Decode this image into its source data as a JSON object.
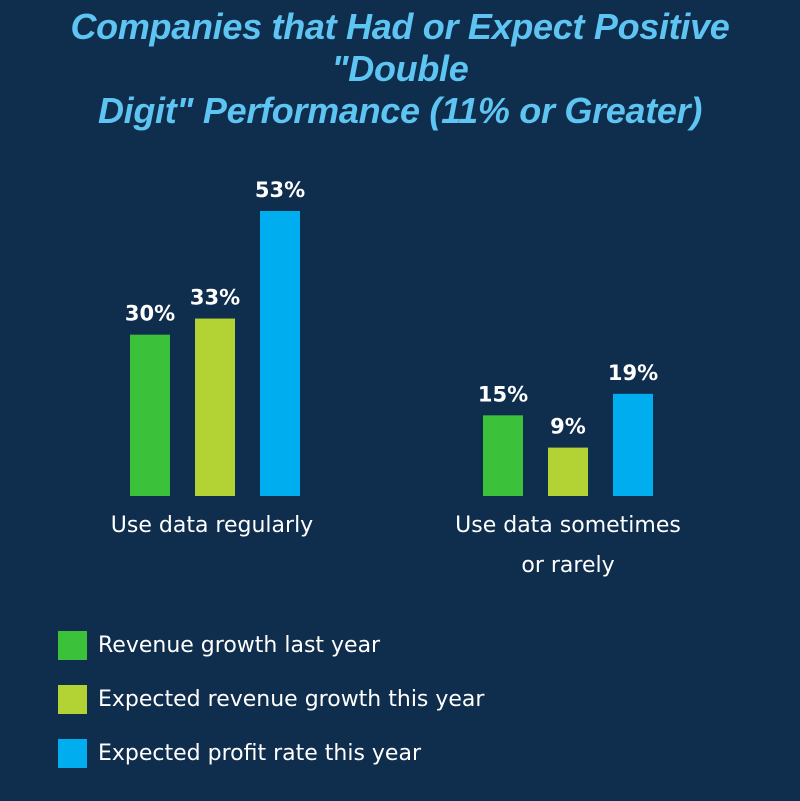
{
  "chart_data": {
    "type": "bar",
    "title": "Companies that Had or Expect Positive \"Double Digit\" Performance (11% or Greater)",
    "title_lines": [
      "Companies that Had or Expect Positive \"Double",
      "Digit\" Performance (11% or Greater)"
    ],
    "categories": [
      "Use data regularly",
      "Use data sometimes or rarely"
    ],
    "category_lines": [
      [
        "Use data regularly"
      ],
      [
        "Use data sometimes",
        "or rarely"
      ]
    ],
    "series": [
      {
        "name": "Revenue growth last year",
        "color": "#3cc13b",
        "values": [
          30,
          15
        ],
        "labels": [
          "30%",
          "15%"
        ]
      },
      {
        "name": "Expected revenue growth this year",
        "color": "#b3d334",
        "values": [
          33,
          9
        ],
        "labels": [
          "33%",
          "9%"
        ]
      },
      {
        "name": "Expected profit rate this year",
        "color": "#00adef",
        "values": [
          53,
          19
        ],
        "labels": [
          "53%",
          "19%"
        ]
      }
    ],
    "unit": "%",
    "ylim": [
      0,
      53
    ],
    "grid": false,
    "legend_position": "bottom-left"
  }
}
